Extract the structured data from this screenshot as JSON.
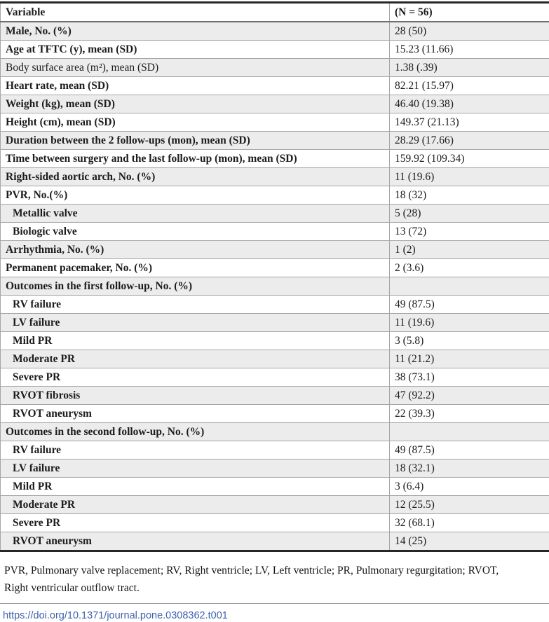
{
  "table": {
    "header": {
      "variable": "Variable",
      "n": "(N = 56)"
    },
    "rows": [
      {
        "label": "Male, No. (%)",
        "value": "28 (50)",
        "bold": true,
        "indent": false
      },
      {
        "label": "Age at TFTC (y), mean (SD)",
        "value": "15.23 (11.66)",
        "bold": true,
        "indent": false
      },
      {
        "label": "Body surface area (m²), mean (SD)",
        "value": "1.38 (.39)",
        "bold": false,
        "indent": false
      },
      {
        "label": "Heart rate, mean (SD)",
        "value": "82.21 (15.97)",
        "bold": true,
        "indent": false
      },
      {
        "label": "Weight (kg), mean (SD)",
        "value": "46.40 (19.38)",
        "bold": true,
        "indent": false
      },
      {
        "label": "Height (cm), mean (SD)",
        "value": "149.37 (21.13)",
        "bold": true,
        "indent": false
      },
      {
        "label": "Duration between the 2 follow-ups (mon), mean (SD)",
        "value": "28.29 (17.66)",
        "bold": true,
        "indent": false
      },
      {
        "label": "Time between surgery and the last follow-up (mon), mean (SD)",
        "value": "159.92 (109.34)",
        "bold": true,
        "indent": false
      },
      {
        "label": "Right-sided aortic arch, No. (%)",
        "value": "11 (19.6)",
        "bold": true,
        "indent": false
      },
      {
        "label": "PVR, No.(%)",
        "value": "18 (32)",
        "bold": true,
        "indent": false
      },
      {
        "label": "Metallic valve",
        "value": "5 (28)",
        "bold": true,
        "indent": true
      },
      {
        "label": "Biologic valve",
        "value": "13 (72)",
        "bold": true,
        "indent": true
      },
      {
        "label": "Arrhythmia, No. (%)",
        "value": "1 (2)",
        "bold": true,
        "indent": false
      },
      {
        "label": "Permanent pacemaker, No. (%)",
        "value": "2 (3.6)",
        "bold": true,
        "indent": false
      },
      {
        "label": "Outcomes in the first follow-up, No. (%)",
        "value": "",
        "bold": true,
        "indent": false
      },
      {
        "label": "RV failure",
        "value": "49 (87.5)",
        "bold": true,
        "indent": true
      },
      {
        "label": "LV failure",
        "value": "11 (19.6)",
        "bold": true,
        "indent": true
      },
      {
        "label": "Mild PR",
        "value": "3 (5.8)",
        "bold": true,
        "indent": true
      },
      {
        "label": "Moderate PR",
        "value": "11 (21.2)",
        "bold": true,
        "indent": true
      },
      {
        "label": "Severe PR",
        "value": "38 (73.1)",
        "bold": true,
        "indent": true
      },
      {
        "label": "RVOT fibrosis",
        "value": "47 (92.2)",
        "bold": true,
        "indent": true
      },
      {
        "label": "RVOT aneurysm",
        "value": "22 (39.3)",
        "bold": true,
        "indent": true
      },
      {
        "label": "Outcomes in the second follow-up, No. (%)",
        "value": "",
        "bold": true,
        "indent": false
      },
      {
        "label": "RV failure",
        "value": "49 (87.5)",
        "bold": true,
        "indent": true
      },
      {
        "label": "LV failure",
        "value": "18 (32.1)",
        "bold": true,
        "indent": true
      },
      {
        "label": "Mild PR",
        "value": "3 (6.4)",
        "bold": true,
        "indent": true
      },
      {
        "label": "Moderate PR",
        "value": "12 (25.5)",
        "bold": true,
        "indent": true
      },
      {
        "label": "Severe PR",
        "value": "32 (68.1)",
        "bold": true,
        "indent": true
      },
      {
        "label": "RVOT aneurysm",
        "value": "14 (25)",
        "bold": true,
        "indent": true
      }
    ]
  },
  "footnote": {
    "line1": "PVR, Pulmonary valve replacement; RV, Right ventricle; LV, Left ventricle; PR, Pulmonary regurgitation; RVOT,",
    "line2": "Right ventricular outflow tract."
  },
  "doi_link": "https://doi.org/10.1371/journal.pone.0308362.t001",
  "colors": {
    "link_blue": "#3f63ae",
    "zebra_row_gray": "#ececec",
    "row_border_gray": "#a6a6a6",
    "table_frame_dark": "#262626",
    "text": "#1c1c1c"
  }
}
